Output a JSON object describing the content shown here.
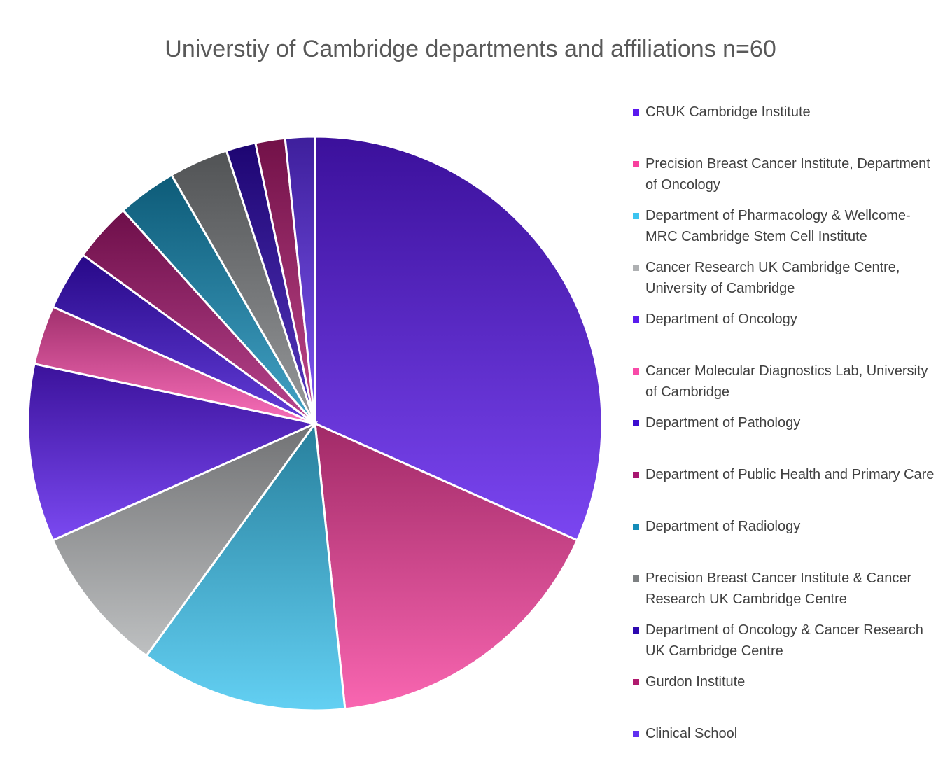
{
  "chart_data": {
    "type": "pie",
    "title": "Universtiy of Cambridge departments and affiliations n=60",
    "categories": [
      "CRUK Cambridge Institute",
      "Precision Breast Cancer Institute, Department of Oncology",
      "Department of Pharmacology & Wellcome-MRC Cambridge Stem Cell Institute",
      "Cancer Research UK Cambridge Centre, University of Cambridge",
      "Department of Oncology",
      "Cancer Molecular Diagnostics Lab, University of Cambridge",
      "Department of Pathology",
      "Department of Public Health and Primary Care",
      "Department of Radiology",
      "Precision Breast Cancer Institute & Cancer Research UK Cambridge Centre",
      "Department of Oncology & Cancer Research UK Cambridge Centre",
      "Gurdon Institute",
      "Clinical School"
    ],
    "values": [
      19,
      10,
      7,
      5,
      6,
      2,
      2,
      2,
      2,
      2,
      1,
      1,
      1
    ],
    "colors": [
      "#5a18ee",
      "#f8409e",
      "#3cc4f0",
      "#aeb0b2",
      "#5a1cee",
      "#f84aa8",
      "#3c0cd0",
      "#a81670",
      "#148cb8",
      "#7d8082",
      "#2c08b0",
      "#b01a6e",
      "#6030f0"
    ],
    "legend": "right"
  }
}
